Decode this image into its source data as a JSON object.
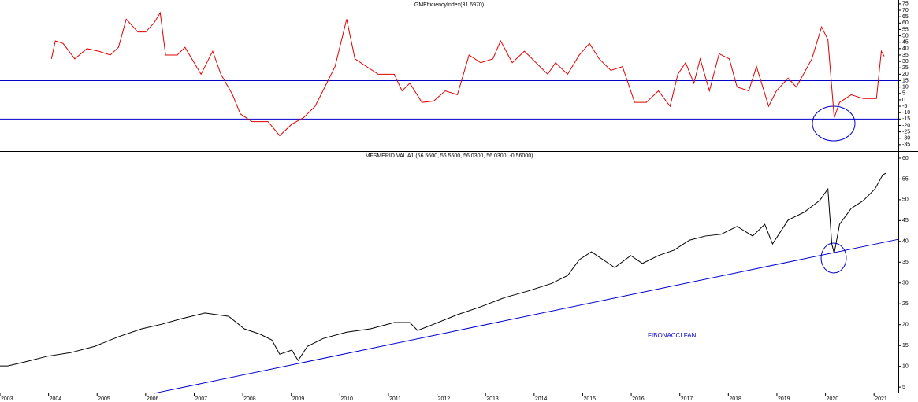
{
  "chart_data": [
    {
      "type": "line",
      "title": "GMEfficiencyIndex(31.6970)",
      "xlim": [
        2003.0,
        2021.5
      ],
      "ylim": [
        -40,
        78
      ],
      "yticks": [
        -35,
        -30,
        -25,
        -20,
        -15,
        -10,
        -5,
        0,
        5,
        10,
        15,
        20,
        25,
        30,
        35,
        40,
        45,
        50,
        55,
        60,
        65,
        70,
        75
      ],
      "hlines": [
        15,
        -15
      ],
      "hline_color": "#0000cc",
      "series": [
        {
          "color": "#e00000",
          "x": [
            2004.06,
            2004.14,
            2004.3,
            2004.54,
            2004.79,
            2005.03,
            2005.27,
            2005.44,
            2005.6,
            2005.84,
            2006.0,
            2006.17,
            2006.3,
            2006.41,
            2006.65,
            2006.81,
            2007.14,
            2007.38,
            2007.55,
            2007.79,
            2007.95,
            2008.19,
            2008.52,
            2008.76,
            2009.01,
            2009.25,
            2009.49,
            2009.69,
            2009.9,
            2010.14,
            2010.31,
            2010.55,
            2010.79,
            2011.12,
            2011.28,
            2011.44,
            2011.69,
            2011.93,
            2012.17,
            2012.42,
            2012.66,
            2012.9,
            2013.15,
            2013.31,
            2013.55,
            2013.8,
            2014.04,
            2014.28,
            2014.44,
            2014.69,
            2014.93,
            2015.14,
            2015.34,
            2015.58,
            2015.82,
            2016.07,
            2016.31,
            2016.56,
            2016.8,
            2016.96,
            2017.12,
            2017.29,
            2017.42,
            2017.61,
            2017.81,
            2018.02,
            2018.18,
            2018.42,
            2018.58,
            2018.83,
            2018.99,
            2019.23,
            2019.4,
            2019.59,
            2019.72,
            2019.92,
            2020.05,
            2020.18,
            2020.29,
            2020.53,
            2020.78,
            2021.05,
            2021.15,
            2021.21
          ],
          "values": [
            32,
            46,
            44,
            32,
            40,
            38,
            35,
            41,
            63,
            53,
            53,
            60,
            68,
            35,
            35,
            41,
            20,
            38,
            20,
            4,
            -11,
            -17,
            -17,
            -28,
            -19,
            -14,
            -5,
            10,
            26,
            63,
            32,
            26,
            20,
            20,
            7,
            13,
            -2,
            -1,
            7,
            4,
            35,
            29,
            32,
            46,
            29,
            38,
            29,
            20,
            29,
            20,
            35,
            44,
            32,
            23,
            26,
            -2,
            -2,
            7,
            -5,
            20,
            29,
            13,
            32,
            7,
            36,
            32,
            10,
            7,
            26,
            -5,
            7,
            17,
            10,
            23,
            32,
            57,
            47,
            -14,
            -2,
            4,
            1,
            1,
            38,
            34
          ]
        }
      ]
    },
    {
      "type": "line",
      "title": "MFSMERID VAL A1 (56.5600, 56.5600, 56.0300, 56.0300, -0.56000)",
      "xlim": [
        2003.0,
        2021.5
      ],
      "ylim": [
        3.7,
        61.5
      ],
      "yticks": [
        5,
        10,
        15,
        20,
        25,
        30,
        35,
        40,
        45,
        50,
        55,
        60
      ],
      "xticks": [
        2003,
        2004,
        2005,
        2006,
        2007,
        2008,
        2009,
        2010,
        2011,
        2012,
        2013,
        2014,
        2015,
        2016,
        2017,
        2018,
        2019,
        2020,
        2021
      ],
      "annotation": "FIBONACCI FAN",
      "series": [
        {
          "color": "#000000",
          "x": [
            2003.0,
            2003.16,
            2003.49,
            2003.97,
            2004.46,
            2004.95,
            2005.44,
            2005.92,
            2006.33,
            2006.73,
            2007.22,
            2007.71,
            2008.03,
            2008.36,
            2008.6,
            2008.76,
            2009.01,
            2009.14,
            2009.33,
            2009.66,
            2010.14,
            2010.63,
            2011.12,
            2011.44,
            2011.6,
            2011.93,
            2012.42,
            2012.9,
            2013.39,
            2013.88,
            2014.36,
            2014.69,
            2014.93,
            2015.18,
            2015.42,
            2015.66,
            2015.99,
            2016.23,
            2016.56,
            2016.88,
            2017.2,
            2017.53,
            2017.85,
            2018.18,
            2018.5,
            2018.75,
            2018.91,
            2019.23,
            2019.56,
            2019.88,
            2020.05,
            2020.13,
            2020.18,
            2020.29,
            2020.53,
            2020.78,
            2021.02,
            2021.18,
            2021.25
          ],
          "values": [
            10.1,
            10.1,
            11,
            12.4,
            13.3,
            14.8,
            17.1,
            19,
            20.1,
            21.4,
            22.8,
            22,
            19,
            17.7,
            16.3,
            12.9,
            13.9,
            11.4,
            14.8,
            16.7,
            18.2,
            19,
            20.5,
            20.5,
            18.6,
            20.1,
            22.4,
            24.3,
            26.5,
            28.1,
            29.9,
            31.8,
            35.6,
            37.5,
            35.6,
            33.7,
            36.6,
            34.7,
            36.6,
            37.9,
            40.3,
            41.3,
            41.7,
            43.6,
            41.3,
            44.1,
            39.4,
            45.1,
            47,
            49.8,
            52.6,
            39.4,
            37.1,
            44.1,
            47.9,
            49.8,
            52.6,
            56,
            56.4
          ]
        },
        {
          "color": "#0000cc",
          "x": [
            2006.17,
            2021.5
          ],
          "values": [
            3.5,
            40.5
          ]
        }
      ]
    }
  ]
}
